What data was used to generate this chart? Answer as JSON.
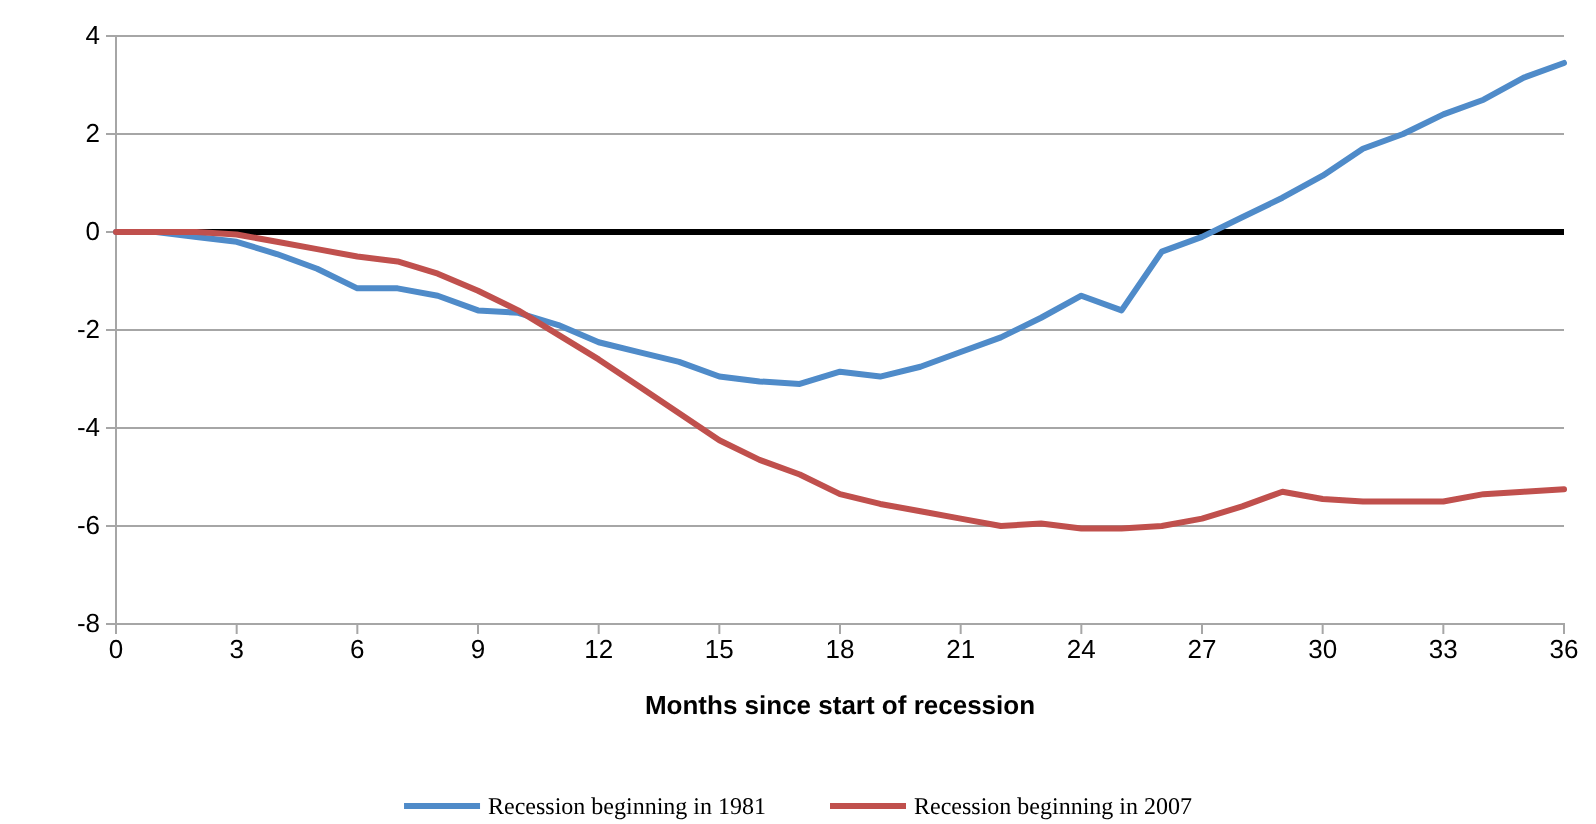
{
  "chart_data": {
    "type": "line",
    "xlabel": "Months since start of recession",
    "x": [
      0,
      1,
      2,
      3,
      4,
      5,
      6,
      7,
      8,
      9,
      10,
      11,
      12,
      13,
      14,
      15,
      16,
      17,
      18,
      19,
      20,
      21,
      22,
      23,
      24,
      25,
      26,
      27,
      28,
      29,
      30,
      31,
      32,
      33,
      34,
      35,
      36
    ],
    "series": [
      {
        "name": "Recession beginning in 1981",
        "color": "#4f8bc9",
        "values": [
          0,
          0,
          -0.1,
          -0.2,
          -0.45,
          -0.75,
          -1.15,
          -1.15,
          -1.3,
          -1.6,
          -1.65,
          -1.9,
          -2.25,
          -2.45,
          -2.65,
          -2.95,
          -3.05,
          -3.1,
          -2.85,
          -2.95,
          -2.75,
          -2.45,
          -2.15,
          -1.75,
          -1.3,
          -1.6,
          -0.4,
          -0.1,
          0.3,
          0.7,
          1.15,
          1.7,
          2.0,
          2.4,
          2.7,
          3.15,
          3.45
        ]
      },
      {
        "name": "Recession beginning in 2007",
        "color": "#c0504d",
        "values": [
          0,
          0,
          0,
          -0.05,
          -0.2,
          -0.35,
          -0.5,
          -0.6,
          -0.85,
          -1.2,
          -1.6,
          -2.1,
          -2.6,
          -3.15,
          -3.7,
          -4.25,
          -4.65,
          -4.95,
          -5.35,
          -5.55,
          -5.7,
          -5.85,
          -6.0,
          -5.95,
          -6.05,
          -6.05,
          -6.0,
          -5.85,
          -5.6,
          -5.3,
          -5.45,
          -5.5,
          -5.5,
          -5.5,
          -5.35,
          -5.3,
          -5.25
        ]
      }
    ],
    "xlim": [
      0,
      36
    ],
    "xticks": [
      0,
      3,
      6,
      9,
      12,
      15,
      18,
      21,
      24,
      27,
      30,
      33,
      36
    ],
    "ylim": [
      -8,
      4
    ],
    "yticks": [
      -8,
      -6,
      -4,
      -2,
      0,
      2,
      4
    ],
    "ref_lines": [
      {
        "axis": "y",
        "value": 0,
        "color": "#000000"
      }
    ],
    "grid": "y",
    "legend": "bottom",
    "marker": "none",
    "line_style": "solid"
  }
}
